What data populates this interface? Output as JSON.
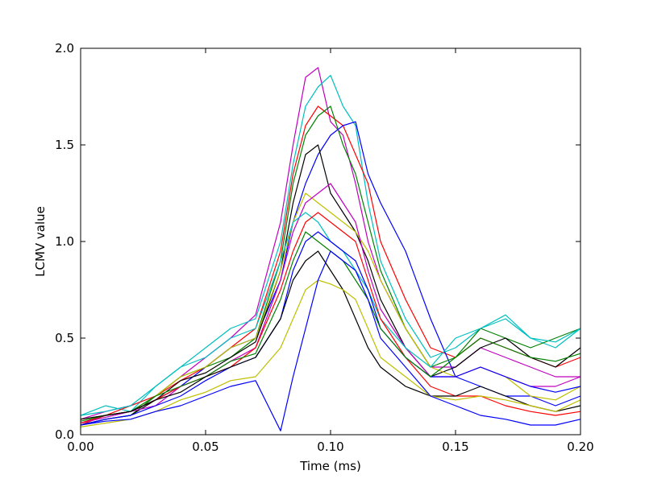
{
  "chart_data": {
    "type": "line",
    "title": "",
    "xlabel": "Time (ms)",
    "ylabel": "LCMV value",
    "xlim": [
      0.0,
      0.2
    ],
    "ylim": [
      0.0,
      2.0
    ],
    "xticks": [
      0.0,
      0.05,
      0.1,
      0.15,
      0.2
    ],
    "xtick_labels": [
      "0.00",
      "0.05",
      "0.10",
      "0.15",
      "0.20"
    ],
    "yticks": [
      0.0,
      0.5,
      1.0,
      1.5,
      2.0
    ],
    "ytick_labels": [
      "0.0",
      "0.5",
      "1.0",
      "1.5",
      "2.0"
    ],
    "grid": false,
    "legend": "none",
    "palette": [
      "#0000ff",
      "#008000",
      "#ff0000",
      "#00bfbf",
      "#bf00bf",
      "#bfbf00",
      "#000000"
    ],
    "x": [
      0.0,
      0.01,
      0.02,
      0.03,
      0.04,
      0.05,
      0.06,
      0.07,
      0.08,
      0.085,
      0.09,
      0.095,
      0.1,
      0.105,
      0.11,
      0.115,
      0.12,
      0.13,
      0.14,
      0.15,
      0.16,
      0.17,
      0.18,
      0.19,
      0.2
    ],
    "series": [
      {
        "color": "#bf00bf",
        "values": [
          0.08,
          0.12,
          0.15,
          0.2,
          0.3,
          0.4,
          0.5,
          0.62,
          1.1,
          1.5,
          1.85,
          1.9,
          1.62,
          1.55,
          1.3,
          1.0,
          0.8,
          0.55,
          0.35,
          0.35,
          0.45,
          0.4,
          0.35,
          0.3,
          0.3
        ]
      },
      {
        "color": "#00bfbf",
        "values": [
          0.1,
          0.15,
          0.12,
          0.25,
          0.35,
          0.45,
          0.55,
          0.6,
          1.0,
          1.4,
          1.7,
          1.8,
          1.86,
          1.7,
          1.6,
          1.2,
          0.9,
          0.6,
          0.4,
          0.45,
          0.55,
          0.62,
          0.5,
          0.45,
          0.55
        ]
      },
      {
        "color": "#ff0000",
        "values": [
          0.05,
          0.1,
          0.15,
          0.2,
          0.28,
          0.35,
          0.45,
          0.55,
          0.95,
          1.35,
          1.6,
          1.7,
          1.65,
          1.6,
          1.45,
          1.3,
          1.0,
          0.7,
          0.45,
          0.4,
          0.5,
          0.45,
          0.4,
          0.35,
          0.4
        ]
      },
      {
        "color": "#0000ff",
        "values": [
          0.06,
          0.1,
          0.12,
          0.18,
          0.25,
          0.35,
          0.45,
          0.5,
          0.8,
          1.1,
          1.3,
          1.45,
          1.55,
          1.6,
          1.62,
          1.35,
          1.2,
          0.95,
          0.6,
          0.3,
          0.25,
          0.2,
          0.2,
          0.15,
          0.2
        ]
      },
      {
        "color": "#008000",
        "values": [
          0.05,
          0.08,
          0.1,
          0.2,
          0.3,
          0.35,
          0.4,
          0.5,
          0.9,
          1.3,
          1.55,
          1.65,
          1.7,
          1.5,
          1.35,
          1.1,
          0.85,
          0.55,
          0.35,
          0.4,
          0.55,
          0.5,
          0.45,
          0.5,
          0.55
        ]
      },
      {
        "color": "#000000",
        "values": [
          0.05,
          0.08,
          0.1,
          0.18,
          0.28,
          0.32,
          0.4,
          0.48,
          0.85,
          1.2,
          1.45,
          1.5,
          1.25,
          1.15,
          1.05,
          0.9,
          0.7,
          0.45,
          0.3,
          0.35,
          0.45,
          0.5,
          0.4,
          0.35,
          0.45
        ]
      },
      {
        "color": "#bfbf00",
        "values": [
          0.08,
          0.1,
          0.12,
          0.2,
          0.3,
          0.35,
          0.45,
          0.5,
          0.85,
          1.1,
          1.25,
          1.2,
          1.15,
          1.1,
          1.05,
          0.95,
          0.8,
          0.55,
          0.35,
          0.3,
          0.35,
          0.3,
          0.2,
          0.18,
          0.25
        ]
      },
      {
        "color": "#bf00bf",
        "values": [
          0.06,
          0.09,
          0.12,
          0.15,
          0.25,
          0.3,
          0.38,
          0.45,
          0.8,
          1.05,
          1.2,
          1.25,
          1.3,
          1.2,
          1.1,
          0.85,
          0.65,
          0.45,
          0.3,
          0.3,
          0.35,
          0.3,
          0.25,
          0.25,
          0.3
        ]
      },
      {
        "color": "#00bfbf",
        "values": [
          0.1,
          0.12,
          0.15,
          0.25,
          0.35,
          0.4,
          0.5,
          0.55,
          0.9,
          1.1,
          1.15,
          1.1,
          1.0,
          0.95,
          0.85,
          0.75,
          0.6,
          0.45,
          0.35,
          0.5,
          0.55,
          0.6,
          0.5,
          0.48,
          0.55
        ]
      },
      {
        "color": "#ff0000",
        "values": [
          0.06,
          0.1,
          0.12,
          0.18,
          0.25,
          0.3,
          0.35,
          0.45,
          0.75,
          0.95,
          1.1,
          1.15,
          1.1,
          1.05,
          1.0,
          0.8,
          0.6,
          0.4,
          0.25,
          0.2,
          0.2,
          0.15,
          0.12,
          0.1,
          0.12
        ]
      },
      {
        "color": "#0000ff",
        "values": [
          0.05,
          0.08,
          0.1,
          0.15,
          0.2,
          0.28,
          0.35,
          0.4,
          0.6,
          0.85,
          1.0,
          1.05,
          1.0,
          0.95,
          0.9,
          0.75,
          0.55,
          0.4,
          0.3,
          0.3,
          0.35,
          0.3,
          0.25,
          0.22,
          0.25
        ]
      },
      {
        "color": "#008000",
        "values": [
          0.07,
          0.1,
          0.12,
          0.2,
          0.25,
          0.3,
          0.38,
          0.42,
          0.7,
          0.9,
          1.05,
          1.0,
          0.95,
          0.9,
          0.8,
          0.7,
          0.55,
          0.4,
          0.3,
          0.4,
          0.5,
          0.45,
          0.4,
          0.38,
          0.42
        ]
      },
      {
        "color": "#000000",
        "values": [
          0.08,
          0.1,
          0.12,
          0.18,
          0.22,
          0.3,
          0.35,
          0.4,
          0.6,
          0.8,
          0.9,
          0.95,
          0.85,
          0.75,
          0.6,
          0.45,
          0.35,
          0.25,
          0.2,
          0.2,
          0.25,
          0.2,
          0.15,
          0.12,
          0.15
        ]
      },
      {
        "color": "#bfbf00",
        "values": [
          0.04,
          0.06,
          0.08,
          0.12,
          0.18,
          0.22,
          0.28,
          0.3,
          0.45,
          0.6,
          0.75,
          0.8,
          0.78,
          0.75,
          0.7,
          0.55,
          0.4,
          0.3,
          0.2,
          0.18,
          0.2,
          0.18,
          0.15,
          0.12,
          0.18
        ]
      },
      {
        "color": "#0000ff",
        "values": [
          0.05,
          0.07,
          0.08,
          0.12,
          0.15,
          0.2,
          0.25,
          0.28,
          0.02,
          0.3,
          0.55,
          0.8,
          0.95,
          0.9,
          0.85,
          0.7,
          0.5,
          0.35,
          0.2,
          0.15,
          0.1,
          0.08,
          0.05,
          0.05,
          0.08
        ]
      }
    ]
  }
}
